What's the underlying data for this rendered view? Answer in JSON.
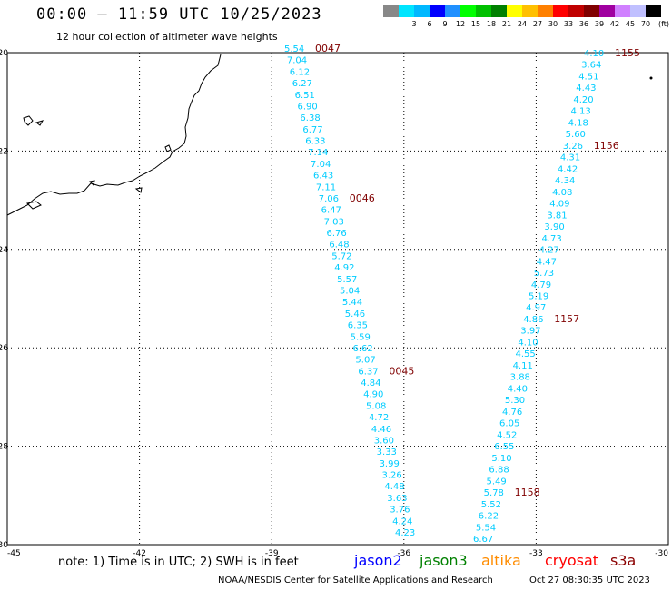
{
  "header": {
    "title": "00:00 – 11:59 UTC 10/25/2023",
    "subtitle": "12 hour collection of altimeter wave heights"
  },
  "colorbar": {
    "colors": [
      "#888888",
      "#00e5ff",
      "#00b8ff",
      "#0000ff",
      "#2090ff",
      "#00ff00",
      "#00c000",
      "#008000",
      "#ffff00",
      "#ffc000",
      "#ff8000",
      "#ff0000",
      "#c00000",
      "#800000",
      "#a000a0",
      "#d080ff",
      "#c0c0ff",
      "#000000"
    ],
    "labels": [
      "3",
      "6",
      "9",
      "12",
      "15",
      "18",
      "21",
      "24",
      "27",
      "30",
      "33",
      "36",
      "39",
      "42",
      "45",
      "70"
    ],
    "unit": "(ft)"
  },
  "axes": {
    "x_ticks": [
      "-45",
      "-42",
      "-39",
      "-36",
      "-33",
      "-30"
    ],
    "y_ticks": [
      "-20",
      "-22",
      "-24",
      "-26",
      "-28",
      "-30"
    ]
  },
  "tracks": [
    {
      "satellite": "jason2",
      "color": "#00ccff",
      "values": [
        "5.54",
        "7.04",
        "6.12",
        "6.27",
        "6.51",
        "6.90",
        "6.38",
        "6.77",
        "6.33",
        "7.14",
        "7.04",
        "6.43",
        "7.11",
        "7.06",
        "6.47",
        "7.03",
        "6.76",
        "6.48",
        "5.72",
        "4.92",
        "5.57",
        "5.04",
        "5.44",
        "5.46",
        "6.35",
        "5.59",
        "6.62",
        "5.07",
        "6.37",
        "4.84",
        "4.90",
        "5.08",
        "4.72",
        "4.46",
        "3.60",
        "3.33",
        "3.99",
        "3.26",
        "4.48",
        "3.63",
        "3.76",
        "4.24",
        "4.23"
      ],
      "times": [
        {
          "label": "0047",
          "index": 0
        },
        {
          "label": "0046",
          "index": 13
        },
        {
          "label": "0045",
          "index": 28
        }
      ]
    },
    {
      "satellite": "jason2",
      "color": "#00ccff",
      "values": [
        "4.10",
        "3.64",
        "4.51",
        "4.43",
        "4.20",
        "4.13",
        "4.18",
        "5.60",
        "3.26",
        "4.31",
        "4.42",
        "4.34",
        "4.08",
        "4.09",
        "3.81",
        "3.90",
        "4.73",
        "4.27",
        "4.47",
        "5.73",
        "4.79",
        "5.19",
        "4.97",
        "4.86",
        "3.97",
        "4.10",
        "4.55",
        "4.11",
        "3.88",
        "4.40",
        "5.30",
        "4.76",
        "6.05",
        "4.52",
        "6.55",
        "5.10",
        "6.88",
        "5.49",
        "5.78",
        "5.52",
        "6.22",
        "5.54",
        "6.67"
      ],
      "times": [
        {
          "label": "1155",
          "index": 0
        },
        {
          "label": "1156",
          "index": 8
        },
        {
          "label": "1157",
          "index": 23
        },
        {
          "label": "1158",
          "index": 38
        }
      ]
    }
  ],
  "footer": {
    "note": "note: 1) Time is in UTC; 2) SWH is in feet",
    "satellites": [
      {
        "name": "jason2",
        "color": "#0000ff"
      },
      {
        "name": "jason3",
        "color": "#008000"
      },
      {
        "name": "altika",
        "color": "#ff8c00"
      },
      {
        "name": "cryosat",
        "color": "#ff0000"
      },
      {
        "name": "s3a",
        "color": "#8b0000"
      }
    ],
    "credit": "NOAA/NESDIS Center for Satellite Applications and Research",
    "timestamp": "Oct 27 08:30:35 UTC 2023"
  }
}
